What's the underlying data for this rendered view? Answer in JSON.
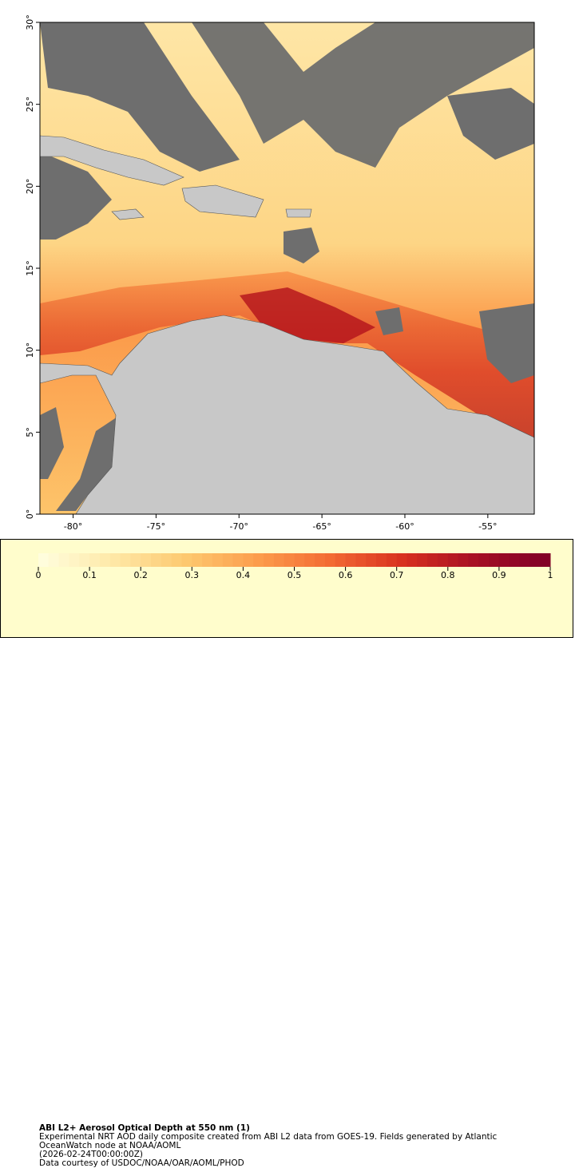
{
  "map": {
    "xlim": [
      -82,
      -52.2
    ],
    "ylim": [
      0,
      30
    ],
    "lon_ticks": [
      {
        "value": -80,
        "label": "-80°"
      },
      {
        "value": -75,
        "label": "-75°"
      },
      {
        "value": -70,
        "label": "-70°"
      },
      {
        "value": -65,
        "label": "-65°"
      },
      {
        "value": -60,
        "label": "-60°"
      },
      {
        "value": -55,
        "label": "-55°"
      }
    ],
    "lat_ticks": [
      {
        "value": 0,
        "label": "0°"
      },
      {
        "value": 5,
        "label": "5°"
      },
      {
        "value": 10,
        "label": "10°"
      },
      {
        "value": 15,
        "label": "15°"
      },
      {
        "value": 20,
        "label": "20°"
      },
      {
        "value": 25,
        "label": "25°"
      },
      {
        "value": 30,
        "label": "30°"
      }
    ]
  },
  "colorbar": {
    "range": [
      0,
      1
    ],
    "ticks": [
      0,
      0.1,
      0.2,
      0.3,
      0.4,
      0.5,
      0.6,
      0.7,
      0.8,
      0.9,
      1
    ],
    "colors": [
      "#ffffe0",
      "#fee9a8",
      "#fdc970",
      "#fc9d4c",
      "#f36a33",
      "#d7301f",
      "#a50f25",
      "#7f0026"
    ],
    "title": "ABI L2+ Aerosol Optical Depth at 550 nm (1)"
  },
  "caption": {
    "lines": [
      "Experimental NRT AOD daily composite created from ABI L2 data from GOES-19. Fields generated by Atlantic OceanWatch node at NOAA/AOML",
      "(2026-02-24T00:00:00Z)",
      "Data courtesy of USDOC/NOAA/OAR/AOML/PHOD"
    ]
  }
}
